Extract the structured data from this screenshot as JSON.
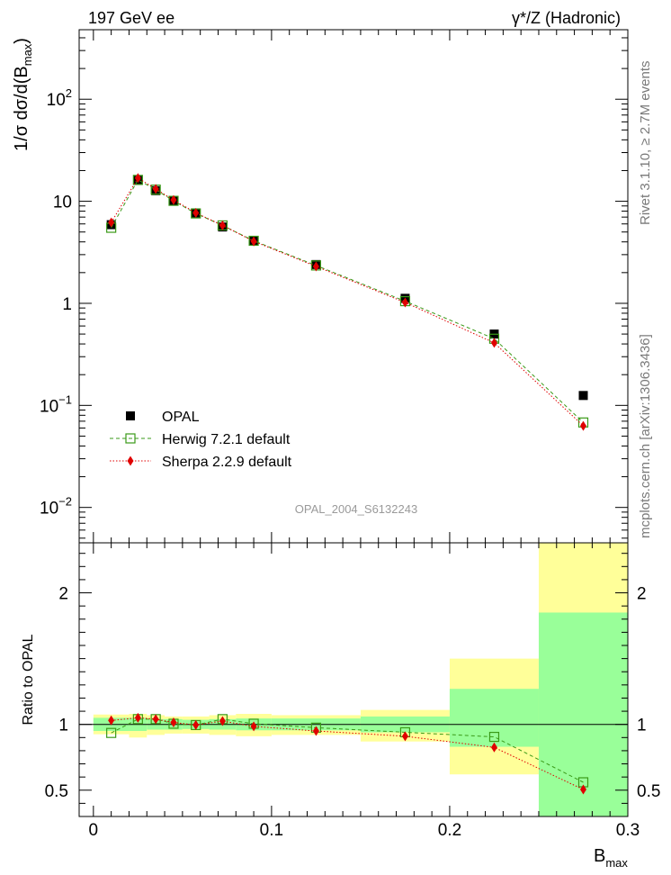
{
  "header": {
    "left": "197 GeV ee",
    "right": "γ*/Z (Hadronic)"
  },
  "side_labels": {
    "rivet": "Rivet 3.1.10, ≥ 2.7M events",
    "mcplots": "mcplots.cern.ch [arXiv:1306.3436]"
  },
  "watermark": "OPAL_2004_S6132243",
  "chart_data": [
    {
      "type": "scatter",
      "panel": "main",
      "ylabel": "1/σ dσ/d(B_max)",
      "yscale": "log",
      "xlim": [
        -0.008,
        0.3
      ],
      "ylim": [
        0.0045,
        480
      ],
      "y_tick_labels": [
        "10⁻²",
        "10⁻¹",
        "1",
        "10",
        "10²"
      ],
      "legend": [
        "OPAL",
        "Herwig 7.2.1 default",
        "Sherpa 2.2.9 default"
      ],
      "legend_position": "lower-left",
      "x": [
        0.01,
        0.025,
        0.035,
        0.045,
        0.0575,
        0.0725,
        0.09,
        0.125,
        0.175,
        0.225,
        0.275
      ],
      "x_bins": [
        [
          0.0,
          0.02
        ],
        [
          0.02,
          0.03
        ],
        [
          0.03,
          0.04
        ],
        [
          0.04,
          0.05
        ],
        [
          0.05,
          0.065
        ],
        [
          0.065,
          0.08
        ],
        [
          0.08,
          0.1
        ],
        [
          0.1,
          0.15
        ],
        [
          0.15,
          0.2
        ],
        [
          0.2,
          0.25
        ],
        [
          0.25,
          0.3
        ]
      ],
      "series": [
        {
          "name": "OPAL",
          "color": "#000000",
          "marker": "filled-square",
          "values": [
            5.9,
            16.0,
            12.7,
            10.1,
            7.7,
            5.6,
            4.1,
            2.4,
            1.12,
            0.5,
            0.125
          ]
        },
        {
          "name": "Herwig 7.2.1 default",
          "color": "#3a9a18",
          "marker": "open-square",
          "line": "dashed",
          "values": [
            5.5,
            16.2,
            13.0,
            10.1,
            7.6,
            5.8,
            4.1,
            2.35,
            1.05,
            0.45,
            0.068
          ]
        },
        {
          "name": "Sherpa 2.2.9 default",
          "color": "#e00000",
          "marker": "filled-diamond",
          "line": "dotted",
          "values": [
            6.2,
            16.9,
            13.2,
            10.3,
            7.7,
            5.8,
            4.05,
            2.3,
            1.02,
            0.41,
            0.063
          ]
        }
      ]
    },
    {
      "type": "scatter",
      "panel": "ratio",
      "xlabel": "B_max",
      "ylabel": "Ratio to OPAL",
      "xlim": [
        -0.008,
        0.3
      ],
      "ylim": [
        0.3,
        2.38
      ],
      "x_ticks": [
        0,
        0.1,
        0.2,
        0.3
      ],
      "x_tick_labels": [
        "0",
        "0.1",
        "0.2",
        "0.3"
      ],
      "y_ticks": [
        0.5,
        1,
        2
      ],
      "y_tick_labels": [
        "0.5",
        "1",
        "2"
      ],
      "reference_line": 1,
      "uncertainty_bands": {
        "stat_color": "#99ff99",
        "total_color": "#ffff99",
        "bins": [
          {
            "x": [
              0.0,
              0.02
            ],
            "total": [
              0.925,
              1.075
            ],
            "stat": [
              0.95,
              1.05
            ]
          },
          {
            "x": [
              0.02,
              0.03
            ],
            "total": [
              0.9,
              1.08
            ],
            "stat": [
              0.95,
              1.05
            ]
          },
          {
            "x": [
              0.03,
              0.04
            ],
            "total": [
              0.92,
              1.07
            ],
            "stat": [
              0.96,
              1.04
            ]
          },
          {
            "x": [
              0.04,
              0.05
            ],
            "total": [
              0.93,
              1.06
            ],
            "stat": [
              0.96,
              1.04
            ]
          },
          {
            "x": [
              0.05,
              0.065
            ],
            "total": [
              0.93,
              1.06
            ],
            "stat": [
              0.965,
              1.035
            ]
          },
          {
            "x": [
              0.065,
              0.08
            ],
            "total": [
              0.92,
              1.07
            ],
            "stat": [
              0.96,
              1.04
            ]
          },
          {
            "x": [
              0.08,
              0.1
            ],
            "total": [
              0.91,
              1.08
            ],
            "stat": [
              0.955,
              1.045
            ]
          },
          {
            "x": [
              0.1,
              0.15
            ],
            "total": [
              0.92,
              1.07
            ],
            "stat": [
              0.955,
              1.045
            ]
          },
          {
            "x": [
              0.15,
              0.2
            ],
            "total": [
              0.87,
              1.11
            ],
            "stat": [
              0.94,
              1.06
            ]
          },
          {
            "x": [
              0.2,
              0.25
            ],
            "total": [
              0.62,
              1.5
            ],
            "stat": [
              0.83,
              1.27
            ]
          },
          {
            "x": [
              0.25,
              0.3
            ],
            "total": [
              0.3,
              2.38
            ],
            "stat": [
              0.3,
              1.85
            ]
          }
        ]
      },
      "series": [
        {
          "name": "Herwig 7.2.1 default",
          "color": "#3a9a18",
          "marker": "open-square",
          "line": "dashed",
          "values": [
            0.935,
            1.04,
            1.04,
            1.005,
            0.995,
            1.04,
            1.005,
            0.975,
            0.94,
            0.905,
            0.56
          ]
        },
        {
          "name": "Sherpa 2.2.9 default",
          "color": "#e00000",
          "marker": "filled-diamond",
          "line": "dotted",
          "values": [
            1.03,
            1.05,
            1.04,
            1.015,
            0.995,
            1.025,
            0.985,
            0.95,
            0.91,
            0.825,
            0.505
          ]
        }
      ]
    }
  ]
}
